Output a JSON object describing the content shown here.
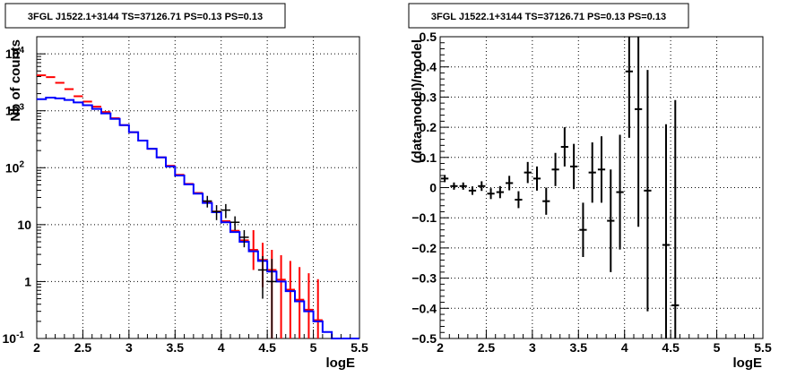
{
  "chart_data": [
    {
      "type": "line",
      "title": "3FGL J1522.1+3144 TS=37126.71 PS=0.13 PS=0.13",
      "xlabel": "logE",
      "ylabel": "Nb of counts",
      "xlim": [
        2,
        5.5
      ],
      "ylim": [
        0.1,
        20000
      ],
      "log_y": true,
      "grid": true,
      "x_ticks": [
        "2",
        "2.5",
        "3",
        "3.5",
        "4",
        "4.5",
        "5",
        "5.5"
      ],
      "y_ticks": [
        {
          "value": 0.1,
          "label": "10",
          "exp": "-1"
        },
        {
          "value": 1,
          "label": "1",
          "exp": ""
        },
        {
          "value": 10,
          "label": "10",
          "exp": ""
        },
        {
          "value": 100,
          "label": "10",
          "exp": "2"
        },
        {
          "value": 1000,
          "label": "10",
          "exp": "3"
        },
        {
          "value": 10000,
          "label": "10",
          "exp": "4"
        }
      ],
      "bin_width": 0.1,
      "series": [
        {
          "color": "#ff0000",
          "style": "steps-errorbars",
          "x": [
            2.05,
            2.15,
            2.25,
            2.35,
            2.45,
            2.55,
            2.65,
            2.75,
            2.85,
            2.95,
            3.05,
            3.15,
            3.25,
            3.35,
            3.45,
            3.55,
            3.65,
            3.75,
            3.85,
            3.95,
            4.05,
            4.15,
            4.25,
            4.35,
            4.45,
            4.55,
            4.65,
            4.75,
            4.85,
            4.95,
            5.05
          ],
          "y": [
            4200,
            3900,
            3100,
            2400,
            1800,
            1450,
            1180,
            950,
            740,
            560,
            420,
            300,
            215,
            152,
            108,
            75,
            52,
            36,
            25,
            17,
            11.5,
            7.8,
            5.3,
            3.6,
            2.4,
            1.6,
            1.08,
            0.72,
            0.48,
            0.32,
            0.21
          ],
          "y_lo": [
            4200,
            3900,
            3100,
            2400,
            1800,
            1450,
            1180,
            950,
            740,
            560,
            420,
            300,
            215,
            152,
            108,
            75,
            52,
            36,
            25,
            17,
            11.5,
            7.8,
            5.3,
            3.6,
            2.4,
            1.6,
            1.08,
            0.72,
            0.48,
            0.32,
            0.21
          ],
          "y_hi": [
            4200,
            3900,
            3100,
            2400,
            1800,
            1450,
            1180,
            950,
            740,
            560,
            420,
            300,
            215,
            152,
            108,
            75,
            52,
            36,
            25,
            17,
            11.5,
            7.8,
            5.3,
            8,
            4.8,
            3.6,
            2.9,
            2.3,
            1.8,
            1.4,
            1.1
          ],
          "y_err_lo": [
            4200,
            3900,
            3100,
            2400,
            1800,
            1450,
            1180,
            950,
            740,
            560,
            420,
            300,
            215,
            152,
            108,
            75,
            52,
            36,
            25,
            17,
            11.5,
            7.8,
            5.3,
            1.6,
            0.8,
            0.1,
            0.1,
            0.1,
            0.1,
            0.1,
            0.1
          ]
        },
        {
          "color": "#0000ff",
          "style": "steps",
          "x": [
            2.05,
            2.15,
            2.25,
            2.35,
            2.45,
            2.55,
            2.65,
            2.75,
            2.85,
            2.95,
            3.05,
            3.15,
            3.25,
            3.35,
            3.45,
            3.55,
            3.65,
            3.75,
            3.85,
            3.95,
            4.05,
            4.15,
            4.25,
            4.35,
            4.45,
            4.55,
            4.65,
            4.75,
            4.85,
            4.95,
            5.05,
            5.15,
            5.25,
            5.35,
            5.45
          ],
          "y": [
            1600,
            1700,
            1650,
            1550,
            1400,
            1250,
            1080,
            900,
            720,
            560,
            420,
            300,
            215,
            152,
            105,
            73,
            51,
            35,
            24,
            16.5,
            11,
            7.4,
            5,
            3.4,
            2.3,
            1.5,
            1.0,
            0.68,
            0.45,
            0.3,
            0.2,
            0.13,
            0.1,
            0.1,
            0.1
          ]
        },
        {
          "color": "#000000",
          "style": "errorbars",
          "x": [
            3.85,
            3.95,
            4.05,
            4.15,
            4.25,
            4.45,
            4.55
          ],
          "y": [
            26,
            17,
            18,
            11,
            6,
            1.6,
            1
          ],
          "y_lo": [
            20,
            12,
            13,
            8,
            4,
            0.5,
            0.1
          ],
          "y_hi": [
            32,
            22,
            23,
            14,
            8,
            2.8,
            2.5
          ]
        }
      ]
    },
    {
      "type": "scatter",
      "title": "3FGL J1522.1+3144 TS=37126.71 PS=0.13 PS=0.13",
      "xlabel": "logE",
      "ylabel": "(data-model)/model",
      "xlim": [
        2,
        5.5
      ],
      "ylim": [
        -0.5,
        0.5
      ],
      "grid": true,
      "x_ticks": [
        "2",
        "2.5",
        "3",
        "3.5",
        "4",
        "4.5",
        "5",
        "5.5"
      ],
      "y_ticks": [
        "−0.5",
        "−0.4",
        "−0.3",
        "−0.2",
        "−0.1",
        "0",
        "0.1",
        "0.2",
        "0.3",
        "0.4",
        "0.5"
      ],
      "bin_width": 0.1,
      "series": [
        {
          "color": "#000000",
          "style": "errorbars",
          "x": [
            2.05,
            2.15,
            2.25,
            2.35,
            2.45,
            2.55,
            2.65,
            2.75,
            2.85,
            2.95,
            3.05,
            3.15,
            3.25,
            3.35,
            3.45,
            3.55,
            3.65,
            3.75,
            3.85,
            3.95,
            4.05,
            4.15,
            4.25,
            4.45,
            4.55
          ],
          "y": [
            0.03,
            0.005,
            0.005,
            -0.01,
            0.005,
            -0.02,
            -0.015,
            0.015,
            -0.04,
            0.05,
            0.03,
            -0.045,
            0.06,
            0.135,
            0.07,
            -0.14,
            0.05,
            0.06,
            -0.11,
            -0.015,
            0.385,
            0.26,
            -0.01,
            -0.19,
            -0.39
          ],
          "err": [
            0.012,
            0.012,
            0.012,
            0.014,
            0.016,
            0.018,
            0.02,
            0.024,
            0.028,
            0.035,
            0.04,
            0.045,
            0.055,
            0.065,
            0.075,
            0.09,
            0.1,
            0.11,
            0.17,
            0.19,
            0.22,
            0.39,
            0.4,
            0.4,
            0.68
          ]
        }
      ]
    }
  ]
}
